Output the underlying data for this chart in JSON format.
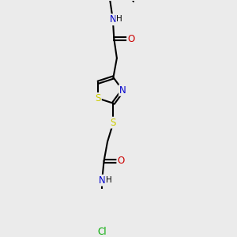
{
  "bg_color": "#ebebeb",
  "atom_colors": {
    "C": "#000000",
    "N": "#0000cc",
    "O": "#cc0000",
    "S": "#cccc00",
    "Cl": "#00aa00",
    "H": "#000000"
  },
  "bond_color": "#000000",
  "bond_width": 1.5,
  "figsize": [
    3.0,
    3.0
  ],
  "dpi": 100
}
